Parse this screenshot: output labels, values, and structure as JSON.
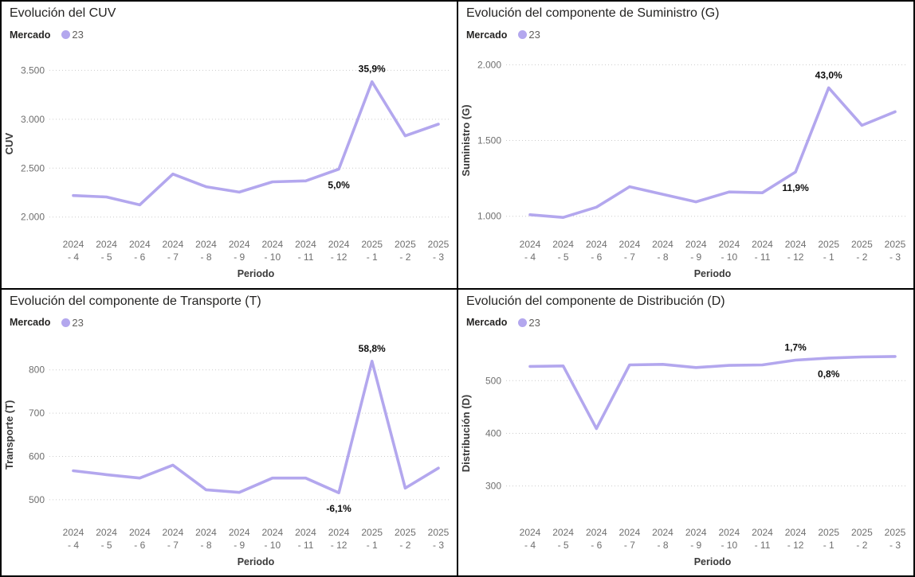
{
  "accent_color": "#b3a7ee",
  "gridline_color": "#cccccc",
  "chart_data": [
    {
      "type": "line",
      "title": "Evolución del CUV",
      "legend": {
        "field": "Mercado",
        "series_label": "23"
      },
      "xlabel": "Periodo",
      "ylabel": "CUV",
      "categories": [
        [
          "2024",
          "- 4"
        ],
        [
          "2024",
          "- 5"
        ],
        [
          "2024",
          "- 6"
        ],
        [
          "2024",
          "- 7"
        ],
        [
          "2024",
          "- 8"
        ],
        [
          "2024",
          "- 9"
        ],
        [
          "2024",
          "- 10"
        ],
        [
          "2024",
          "- 11"
        ],
        [
          "2024",
          "- 12"
        ],
        [
          "2025",
          "- 1"
        ],
        [
          "2025",
          "- 2"
        ],
        [
          "2025",
          "- 3"
        ]
      ],
      "values": [
        2220,
        2205,
        2125,
        2440,
        2310,
        2255,
        2360,
        2370,
        2490,
        3384,
        2830,
        2950
      ],
      "yticks": [
        {
          "v": 2000,
          "label": "2.000"
        },
        {
          "v": 2500,
          "label": "2.500"
        },
        {
          "v": 3000,
          "label": "3.000"
        },
        {
          "v": 3500,
          "label": "3.500"
        }
      ],
      "ylim": [
        1900,
        3650
      ],
      "point_labels": [
        {
          "index": 8,
          "text": "5,0%",
          "pos": "below"
        },
        {
          "index": 9,
          "text": "35,9%",
          "pos": "above"
        }
      ],
      "grid": "dotted-horizontal",
      "legend_position": "top-left"
    },
    {
      "type": "line",
      "title": "Evolución del componente de Suministro (G)",
      "legend": {
        "field": "Mercado",
        "series_label": "23"
      },
      "xlabel": "Periodo",
      "ylabel": "Suministro (G)",
      "categories": [
        [
          "2024",
          "- 4"
        ],
        [
          "2024",
          "- 5"
        ],
        [
          "2024",
          "- 6"
        ],
        [
          "2024",
          "- 7"
        ],
        [
          "2024",
          "- 8"
        ],
        [
          "2024",
          "- 9"
        ],
        [
          "2024",
          "- 10"
        ],
        [
          "2024",
          "- 11"
        ],
        [
          "2024",
          "- 12"
        ],
        [
          "2025",
          "- 1"
        ],
        [
          "2025",
          "- 2"
        ],
        [
          "2025",
          "- 3"
        ]
      ],
      "values": [
        1010,
        992,
        1060,
        1195,
        1145,
        1095,
        1160,
        1155,
        1292,
        1848,
        1600,
        1690
      ],
      "yticks": [
        {
          "v": 1000,
          "label": "1.000"
        },
        {
          "v": 1500,
          "label": "1.500"
        },
        {
          "v": 2000,
          "label": "2.000"
        }
      ],
      "ylim": [
        930,
        2060
      ],
      "point_labels": [
        {
          "index": 8,
          "text": "11,9%",
          "pos": "below"
        },
        {
          "index": 9,
          "text": "43,0%",
          "pos": "above"
        }
      ],
      "grid": "dotted-horizontal",
      "legend_position": "top-left"
    },
    {
      "type": "line",
      "title": "Evolución del componente de Transporte (T)",
      "legend": {
        "field": "Mercado",
        "series_label": "23"
      },
      "xlabel": "Periodo",
      "ylabel": "Transporte (T)",
      "categories": [
        [
          "2024",
          "- 4"
        ],
        [
          "2024",
          "- 5"
        ],
        [
          "2024",
          "- 6"
        ],
        [
          "2024",
          "- 7"
        ],
        [
          "2024",
          "- 8"
        ],
        [
          "2024",
          "- 9"
        ],
        [
          "2024",
          "- 10"
        ],
        [
          "2024",
          "- 11"
        ],
        [
          "2024",
          "- 12"
        ],
        [
          "2025",
          "- 1"
        ],
        [
          "2025",
          "- 2"
        ],
        [
          "2025",
          "- 3"
        ]
      ],
      "values": [
        567,
        558,
        550,
        580,
        523,
        517,
        550,
        550,
        516,
        820,
        527,
        573
      ],
      "yticks": [
        {
          "v": 500,
          "label": "500"
        },
        {
          "v": 600,
          "label": "600"
        },
        {
          "v": 700,
          "label": "700"
        },
        {
          "v": 800,
          "label": "800"
        }
      ],
      "ylim": [
        465,
        860
      ],
      "point_labels": [
        {
          "index": 8,
          "text": "-6,1%",
          "pos": "below"
        },
        {
          "index": 9,
          "text": "58,8%",
          "pos": "above"
        }
      ],
      "grid": "dotted-horizontal",
      "legend_position": "top-left"
    },
    {
      "type": "line",
      "title": "Evolución del componente de Distribución (D)",
      "legend": {
        "field": "Mercado",
        "series_label": "23"
      },
      "xlabel": "Periodo",
      "ylabel": "Distribución (D)",
      "categories": [
        [
          "2024",
          "- 4"
        ],
        [
          "2024",
          "- 5"
        ],
        [
          "2024",
          "- 6"
        ],
        [
          "2024",
          "- 7"
        ],
        [
          "2024",
          "- 8"
        ],
        [
          "2024",
          "- 9"
        ],
        [
          "2024",
          "- 10"
        ],
        [
          "2024",
          "- 11"
        ],
        [
          "2024",
          "- 12"
        ],
        [
          "2025",
          "- 1"
        ],
        [
          "2025",
          "- 2"
        ],
        [
          "2025",
          "- 3"
        ]
      ],
      "values": [
        527,
        528,
        409,
        530,
        531,
        525,
        529,
        530,
        539,
        543,
        545,
        546
      ],
      "yticks": [
        {
          "v": 300,
          "label": "300"
        },
        {
          "v": 400,
          "label": "400"
        },
        {
          "v": 500,
          "label": "500"
        }
      ],
      "ylim": [
        245,
        570
      ],
      "point_labels": [
        {
          "index": 8,
          "text": "1,7%",
          "pos": "above"
        },
        {
          "index": 9,
          "text": "0,8%",
          "pos": "below"
        }
      ],
      "grid": "dotted-horizontal",
      "legend_position": "top-left"
    }
  ]
}
